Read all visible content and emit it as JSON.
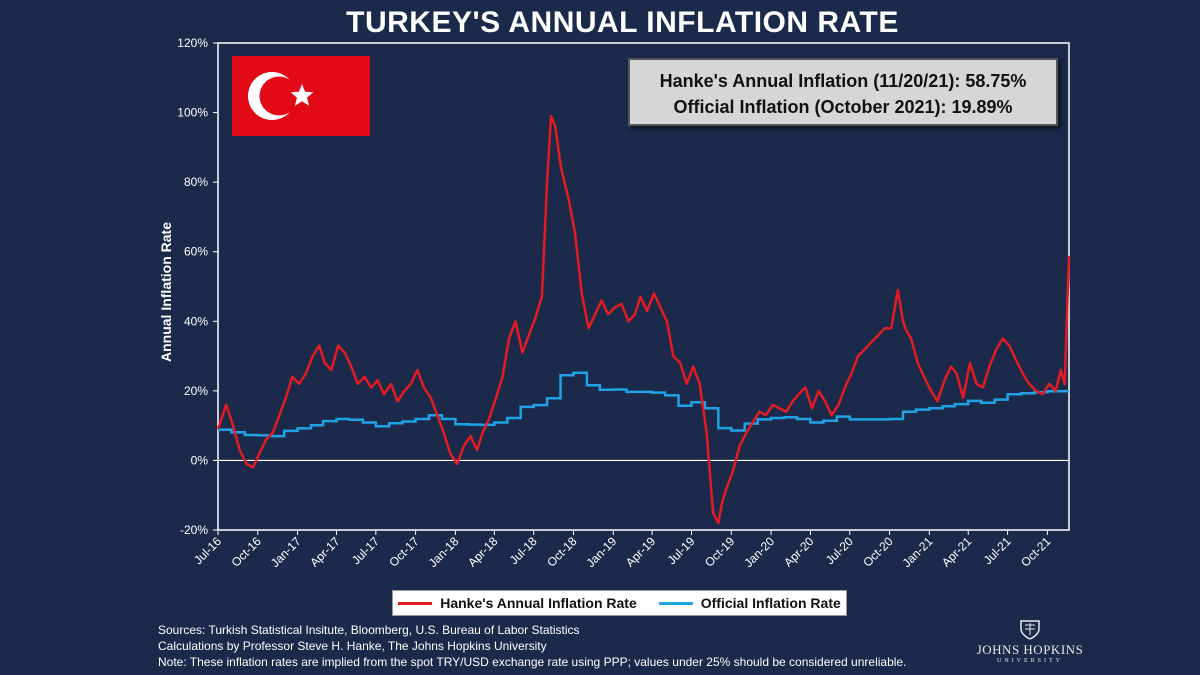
{
  "title": "TURKEY'S ANNUAL INFLATION RATE",
  "info_box": {
    "line1": "Hanke's Annual Inflation (11/20/21): 58.75%",
    "line2": "Official Inflation (October 2021): 19.89%"
  },
  "legend": {
    "hanke": "Hanke's Annual Inflation Rate",
    "official": "Official Inflation Rate"
  },
  "footer": {
    "sources": "Sources: Turkish Statistical Insitute, Bloomberg, U.S. Bureau of Labor Statistics",
    "calculations": "Calculations by Professor Steve H. Hanke, The Johns Hopkins University",
    "note": "Note: These inflation rates are implied from the spot TRY/USD exchange rate using PPP; values under 25% should be considered unreliable."
  },
  "logo": {
    "name": "JOHNS HOPKINS",
    "sub": "UNIVERSITY"
  },
  "colors": {
    "background": "#1b2a4a",
    "hanke": "#e31b23",
    "official": "#1fa3e6",
    "flag": "#e30a17"
  },
  "chart_data": {
    "type": "line",
    "ylabel": "Annual Inflation Rate",
    "ylim": [
      -20,
      120
    ],
    "yticks": [
      "-20%",
      "0%",
      "20%",
      "40%",
      "60%",
      "80%",
      "100%",
      "120%"
    ],
    "ytick_values": [
      -20,
      0,
      20,
      40,
      60,
      80,
      100,
      120
    ],
    "xlim": [
      "2016-07-01",
      "2021-11-20"
    ],
    "xticks": [
      "Jul-16",
      "Oct-16",
      "Jan-17",
      "Apr-17",
      "Jul-17",
      "Oct-17",
      "Jan-18",
      "Apr-18",
      "Jul-18",
      "Oct-18",
      "Jan-19",
      "Apr-19",
      "Jul-19",
      "Oct-19",
      "Jan-20",
      "Apr-20",
      "Jul-20",
      "Oct-20",
      "Jan-21",
      "Apr-21",
      "Jul-21",
      "Oct-21"
    ],
    "xtick_dates": [
      "2016-07-01",
      "2016-10-01",
      "2017-01-01",
      "2017-04-01",
      "2017-07-01",
      "2017-10-01",
      "2018-01-01",
      "2018-04-01",
      "2018-07-01",
      "2018-10-01",
      "2019-01-01",
      "2019-04-01",
      "2019-07-01",
      "2019-10-01",
      "2020-01-01",
      "2020-04-01",
      "2020-07-01",
      "2020-10-01",
      "2021-01-01",
      "2021-04-01",
      "2021-07-01",
      "2021-10-01"
    ],
    "grid": false,
    "series": [
      {
        "name": "Hanke's Annual Inflation Rate",
        "x": [
          "2016-07-01",
          "2016-07-20",
          "2016-08-05",
          "2016-08-20",
          "2016-09-05",
          "2016-09-20",
          "2016-10-05",
          "2016-10-20",
          "2016-11-05",
          "2016-11-20",
          "2016-12-05",
          "2016-12-20",
          "2017-01-05",
          "2017-01-20",
          "2017-02-05",
          "2017-02-20",
          "2017-03-05",
          "2017-03-20",
          "2017-04-05",
          "2017-04-20",
          "2017-05-05",
          "2017-05-20",
          "2017-06-05",
          "2017-06-20",
          "2017-07-05",
          "2017-07-20",
          "2017-08-05",
          "2017-08-20",
          "2017-09-05",
          "2017-09-20",
          "2017-10-05",
          "2017-10-20",
          "2017-11-05",
          "2017-11-20",
          "2017-12-05",
          "2017-12-20",
          "2018-01-05",
          "2018-01-20",
          "2018-02-05",
          "2018-02-20",
          "2018-03-05",
          "2018-03-20",
          "2018-04-05",
          "2018-04-20",
          "2018-05-05",
          "2018-05-20",
          "2018-06-05",
          "2018-06-20",
          "2018-07-05",
          "2018-07-20",
          "2018-08-01",
          "2018-08-10",
          "2018-08-20",
          "2018-09-01",
          "2018-09-10",
          "2018-09-20",
          "2018-10-05",
          "2018-10-20",
          "2018-11-05",
          "2018-11-20",
          "2018-12-05",
          "2018-12-20",
          "2019-01-05",
          "2019-01-20",
          "2019-02-05",
          "2019-02-20",
          "2019-03-05",
          "2019-03-20",
          "2019-04-05",
          "2019-04-20",
          "2019-05-05",
          "2019-05-20",
          "2019-06-05",
          "2019-06-20",
          "2019-07-05",
          "2019-07-20",
          "2019-08-05",
          "2019-08-20",
          "2019-09-01",
          "2019-09-10",
          "2019-09-20",
          "2019-10-05",
          "2019-10-20",
          "2019-11-05",
          "2019-11-20",
          "2019-12-05",
          "2019-12-20",
          "2020-01-05",
          "2020-01-20",
          "2020-02-05",
          "2020-02-20",
          "2020-03-05",
          "2020-03-20",
          "2020-04-05",
          "2020-04-20",
          "2020-05-05",
          "2020-05-20",
          "2020-06-05",
          "2020-06-20",
          "2020-07-05",
          "2020-07-20",
          "2020-08-05",
          "2020-08-20",
          "2020-09-05",
          "2020-09-20",
          "2020-10-05",
          "2020-10-20",
          "2020-11-01",
          "2020-11-10",
          "2020-11-20",
          "2020-12-05",
          "2020-12-20",
          "2021-01-05",
          "2021-01-20",
          "2021-02-05",
          "2021-02-20",
          "2021-03-05",
          "2021-03-20",
          "2021-04-05",
          "2021-04-20",
          "2021-05-05",
          "2021-05-20",
          "2021-06-05",
          "2021-06-20",
          "2021-07-05",
          "2021-07-20",
          "2021-08-05",
          "2021-08-20",
          "2021-09-05",
          "2021-09-20",
          "2021-10-05",
          "2021-10-20",
          "2021-11-01",
          "2021-11-10",
          "2021-11-15",
          "2021-11-20"
        ],
        "y": [
          9,
          16,
          10,
          3,
          -1,
          -2,
          2,
          6,
          8,
          13,
          18,
          24,
          22,
          25,
          30,
          33,
          28,
          26,
          33,
          31,
          27,
          22,
          24,
          21,
          23,
          19,
          22,
          17,
          20,
          22,
          26,
          21,
          18,
          13,
          8,
          2,
          -1,
          4,
          7,
          3,
          8,
          12,
          18,
          24,
          35,
          40,
          31,
          36,
          41,
          47,
          80,
          99,
          96,
          85,
          80,
          75,
          65,
          48,
          38,
          42,
          46,
          42,
          44,
          45,
          40,
          42,
          47,
          43,
          48,
          44,
          40,
          30,
          28,
          22,
          27,
          22,
          8,
          -15,
          -18,
          -12,
          -8,
          -3,
          4,
          8,
          11,
          14,
          13,
          16,
          15,
          14,
          17,
          19,
          21,
          15,
          20,
          17,
          13,
          16,
          21,
          25,
          30,
          32,
          34,
          36,
          38,
          38,
          49,
          40,
          37,
          35,
          28,
          24,
          20,
          17,
          23,
          27,
          25,
          18,
          28,
          22,
          21,
          27,
          32,
          35,
          33,
          29,
          25,
          22,
          20,
          19,
          22,
          20,
          26,
          22,
          40,
          58.75
        ]
      },
      {
        "name": "Official Inflation Rate",
        "x": [
          "2016-07-01",
          "2016-08-01",
          "2016-09-01",
          "2016-10-01",
          "2016-11-01",
          "2016-12-01",
          "2017-01-01",
          "2017-02-01",
          "2017-03-01",
          "2017-04-01",
          "2017-05-01",
          "2017-06-01",
          "2017-07-01",
          "2017-08-01",
          "2017-09-01",
          "2017-10-01",
          "2017-11-01",
          "2017-12-01",
          "2018-01-01",
          "2018-02-01",
          "2018-03-01",
          "2018-04-01",
          "2018-05-01",
          "2018-06-01",
          "2018-07-01",
          "2018-08-01",
          "2018-09-01",
          "2018-10-01",
          "2018-11-01",
          "2018-12-01",
          "2019-01-01",
          "2019-02-01",
          "2019-03-01",
          "2019-04-01",
          "2019-05-01",
          "2019-06-01",
          "2019-07-01",
          "2019-08-01",
          "2019-09-01",
          "2019-10-01",
          "2019-11-01",
          "2019-12-01",
          "2020-01-01",
          "2020-02-01",
          "2020-03-01",
          "2020-04-01",
          "2020-05-01",
          "2020-06-01",
          "2020-07-01",
          "2020-08-01",
          "2020-09-01",
          "2020-10-01",
          "2020-11-01",
          "2020-12-01",
          "2021-01-01",
          "2021-02-01",
          "2021-03-01",
          "2021-04-01",
          "2021-05-01",
          "2021-06-01",
          "2021-07-01",
          "2021-08-01",
          "2021-09-01",
          "2021-10-01",
          "2021-11-20"
        ],
        "y": [
          8.8,
          8.1,
          7.3,
          7.2,
          7.0,
          8.5,
          9.2,
          10.1,
          11.3,
          11.9,
          11.7,
          10.9,
          9.8,
          10.7,
          11.2,
          11.9,
          13.0,
          11.9,
          10.4,
          10.3,
          10.2,
          10.9,
          12.2,
          15.4,
          15.9,
          17.9,
          24.5,
          25.2,
          21.6,
          20.3,
          20.4,
          19.7,
          19.7,
          19.5,
          18.7,
          15.7,
          16.7,
          15.0,
          9.3,
          8.6,
          10.6,
          11.8,
          12.2,
          12.4,
          11.9,
          10.9,
          11.4,
          12.6,
          11.8,
          11.8,
          11.8,
          11.9,
          14.0,
          14.6,
          15.0,
          15.6,
          16.2,
          17.1,
          16.6,
          17.5,
          19.0,
          19.3,
          19.6,
          19.9,
          19.89
        ]
      }
    ]
  }
}
